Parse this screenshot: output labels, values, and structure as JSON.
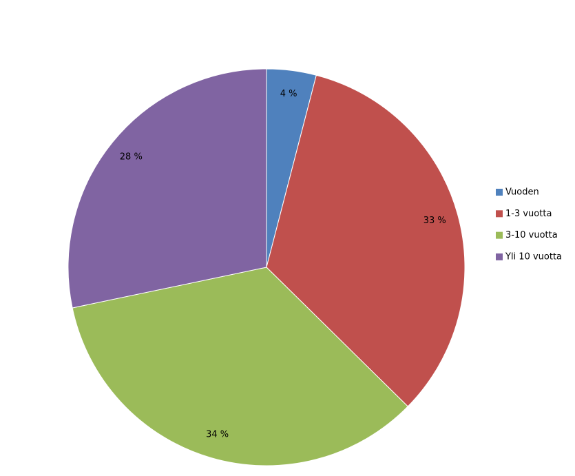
{
  "chart_data": {
    "type": "pie",
    "categories": [
      "Vuoden",
      "1-3 vuotta",
      "3-10 vuotta",
      "Yli 10 vuotta"
    ],
    "values": [
      4,
      33,
      34,
      28
    ],
    "value_labels": [
      "4 %",
      "33 %",
      "34 %",
      "28 %"
    ],
    "colors": [
      "#4f81bd",
      "#c0504d",
      "#9bbb59",
      "#8064a2"
    ],
    "legend": "right"
  }
}
